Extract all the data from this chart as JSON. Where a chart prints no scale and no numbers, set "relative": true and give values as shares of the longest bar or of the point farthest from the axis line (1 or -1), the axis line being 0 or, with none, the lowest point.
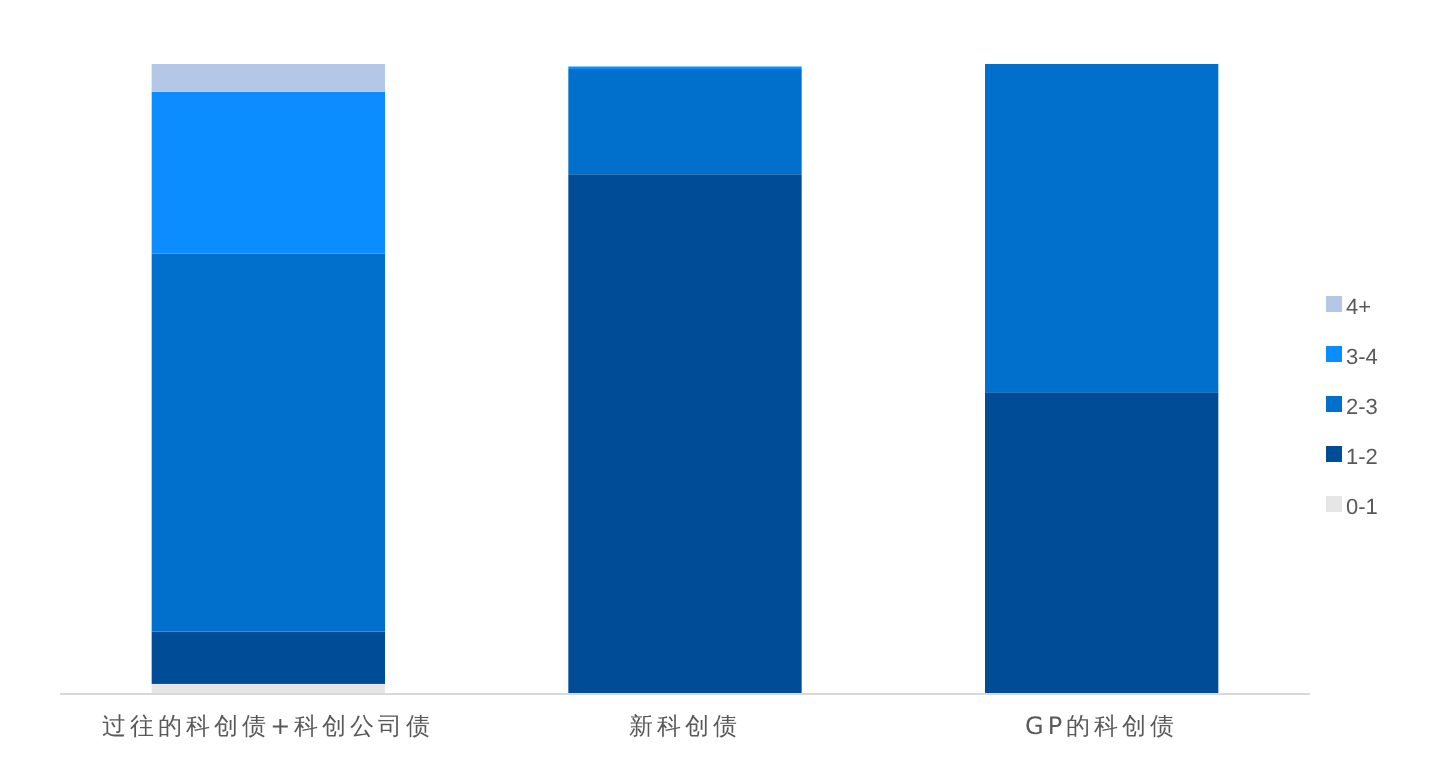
{
  "chart_data": {
    "type": "bar",
    "stacked": true,
    "relative": true,
    "legend": "right",
    "categories": [
      "过往的科创债+科创公司债",
      "新科创债",
      "GP的科创债"
    ],
    "series": [
      {
        "name": "0-1",
        "color": "#e6e6e6",
        "values": [
          0.016,
          0,
          0
        ]
      },
      {
        "name": "1-2",
        "color": "#004c97",
        "values": [
          0.083,
          0.825,
          0.479
        ]
      },
      {
        "name": "2-3",
        "color": "#0070cc",
        "values": [
          0.6,
          0.167,
          0.521
        ]
      },
      {
        "name": "3-4",
        "color": "#0b8cff",
        "values": [
          0.257,
          0.004,
          0
        ]
      },
      {
        "name": "4+",
        "color": "#b4c7e7",
        "values": [
          0.044,
          0,
          0
        ]
      }
    ]
  }
}
